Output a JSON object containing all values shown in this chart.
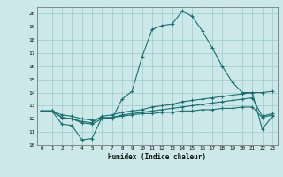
{
  "title": "",
  "xlabel": "Humidex (Indice chaleur)",
  "bg_color": "#cce8e8",
  "grid_color": "#99cccc",
  "line_color": "#1a7070",
  "xlim": [
    -0.5,
    23.5
  ],
  "ylim": [
    10,
    20.5
  ],
  "yticks": [
    10,
    11,
    12,
    13,
    14,
    15,
    16,
    17,
    18,
    19,
    20
  ],
  "xticks": [
    0,
    1,
    2,
    3,
    4,
    5,
    6,
    7,
    8,
    9,
    10,
    11,
    12,
    13,
    14,
    15,
    16,
    17,
    18,
    19,
    20,
    21,
    22,
    23
  ],
  "series1_x": [
    0,
    1,
    2,
    3,
    4,
    5,
    6,
    7,
    8,
    9,
    10,
    11,
    12,
    13,
    14,
    15,
    16,
    17,
    18,
    19,
    20,
    21,
    22,
    23
  ],
  "series1_y": [
    12.6,
    12.6,
    11.6,
    11.5,
    10.4,
    10.5,
    12.1,
    12.0,
    13.5,
    14.1,
    16.7,
    18.8,
    19.1,
    19.2,
    20.2,
    19.8,
    18.7,
    17.4,
    16.0,
    14.8,
    14.0,
    14.0,
    11.2,
    12.2
  ],
  "series2_x": [
    0,
    1,
    2,
    3,
    4,
    5,
    6,
    7,
    8,
    9,
    10,
    11,
    12,
    13,
    14,
    15,
    16,
    17,
    18,
    19,
    20,
    21,
    22,
    23
  ],
  "series2_y": [
    12.6,
    12.6,
    12.1,
    12.0,
    11.8,
    11.7,
    12.2,
    12.3,
    12.5,
    12.6,
    12.7,
    12.9,
    13.0,
    13.1,
    13.3,
    13.4,
    13.5,
    13.6,
    13.7,
    13.8,
    13.9,
    14.0,
    14.0,
    14.1
  ],
  "series3_x": [
    0,
    1,
    2,
    3,
    4,
    5,
    6,
    7,
    8,
    9,
    10,
    11,
    12,
    13,
    14,
    15,
    16,
    17,
    18,
    19,
    20,
    21,
    22,
    23
  ],
  "series3_y": [
    12.6,
    12.6,
    12.1,
    12.0,
    11.7,
    11.6,
    12.0,
    12.1,
    12.3,
    12.4,
    12.5,
    12.6,
    12.7,
    12.8,
    12.9,
    13.0,
    13.1,
    13.2,
    13.3,
    13.4,
    13.5,
    13.6,
    12.2,
    12.4
  ],
  "series4_x": [
    0,
    1,
    2,
    3,
    4,
    5,
    6,
    7,
    8,
    9,
    10,
    11,
    12,
    13,
    14,
    15,
    16,
    17,
    18,
    19,
    20,
    21,
    22,
    23
  ],
  "series4_y": [
    12.6,
    12.6,
    12.3,
    12.2,
    12.0,
    11.9,
    12.1,
    12.1,
    12.2,
    12.3,
    12.4,
    12.4,
    12.5,
    12.5,
    12.6,
    12.6,
    12.7,
    12.7,
    12.8,
    12.8,
    12.9,
    12.9,
    12.1,
    12.3
  ]
}
